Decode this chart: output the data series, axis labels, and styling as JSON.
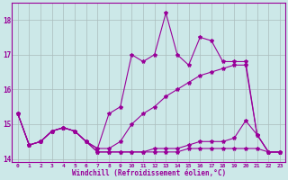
{
  "x_values": [
    0,
    1,
    2,
    3,
    4,
    5,
    6,
    7,
    8,
    9,
    10,
    11,
    12,
    13,
    14,
    15,
    16,
    17,
    18,
    19,
    20,
    21,
    22,
    23
  ],
  "line1": [
    15.3,
    14.4,
    14.5,
    14.8,
    14.9,
    14.8,
    14.5,
    14.3,
    15.3,
    15.5,
    17.0,
    16.8,
    17.0,
    18.2,
    17.0,
    16.7,
    17.5,
    17.4,
    16.8,
    16.8,
    16.8,
    14.7,
    14.2,
    14.2
  ],
  "line2": [
    15.3,
    14.4,
    14.5,
    14.8,
    14.9,
    14.8,
    14.5,
    14.3,
    14.3,
    14.5,
    15.0,
    15.3,
    15.5,
    15.8,
    16.0,
    16.2,
    16.4,
    16.5,
    16.6,
    16.7,
    16.7,
    14.7,
    14.2,
    14.2
  ],
  "line3": [
    15.3,
    14.4,
    14.5,
    14.8,
    14.9,
    14.8,
    14.5,
    14.2,
    14.2,
    14.2,
    14.2,
    14.2,
    14.3,
    14.3,
    14.3,
    14.4,
    14.5,
    14.5,
    14.5,
    14.6,
    15.1,
    14.7,
    14.2,
    14.2
  ],
  "line4": [
    15.3,
    14.4,
    14.5,
    14.8,
    14.9,
    14.8,
    14.5,
    14.2,
    14.2,
    14.2,
    14.2,
    14.2,
    14.2,
    14.2,
    14.2,
    14.3,
    14.3,
    14.3,
    14.3,
    14.3,
    14.3,
    14.3,
    14.2,
    14.2
  ],
  "line_color": "#990099",
  "bg_color": "#cce8e8",
  "grid_color": "#aabcbc",
  "xlabel": "Windchill (Refroidissement éolien,°C)",
  "ylim": [
    13.9,
    18.5
  ],
  "xlim": [
    -0.5,
    23.5
  ],
  "yticks": [
    14,
    15,
    16,
    17,
    18
  ],
  "xticks": [
    0,
    1,
    2,
    3,
    4,
    5,
    6,
    7,
    8,
    9,
    10,
    11,
    12,
    13,
    14,
    15,
    16,
    17,
    18,
    19,
    20,
    21,
    22,
    23
  ],
  "marker": "*",
  "marker_size": 3,
  "linewidth": 0.8
}
